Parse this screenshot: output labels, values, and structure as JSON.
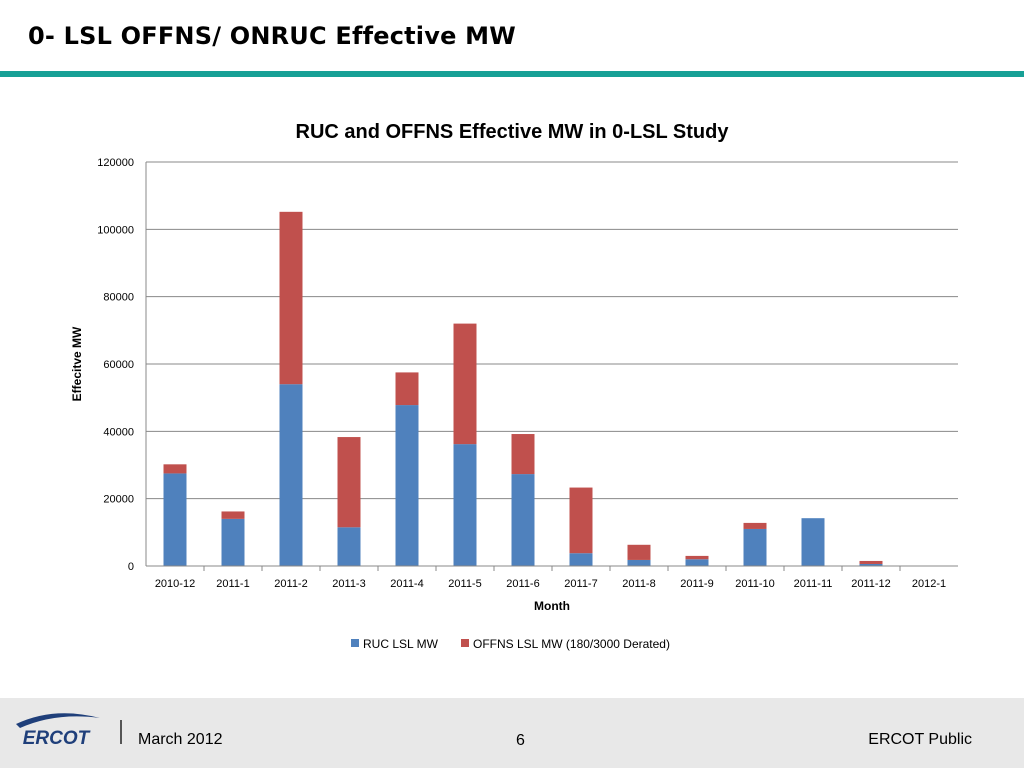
{
  "slide": {
    "title": "0- LSL OFFNS/ ONRUC Effective MW"
  },
  "footer": {
    "date": "March 2012",
    "page_number": "6",
    "classification": "ERCOT Public",
    "logo_text": "ERCOT"
  },
  "colors": {
    "accent_rule": "#17a096",
    "ruc": "#4f81bd",
    "offns": "#c0504d"
  },
  "chart_data": {
    "type": "bar",
    "stacked": true,
    "title": "RUC and OFFNS Effective MW in 0-LSL Study",
    "xlabel": "Month",
    "ylabel": "Effecitve MW",
    "ylim": [
      0,
      120000
    ],
    "yticks": [
      "0",
      "20000",
      "40000",
      "60000",
      "80000",
      "100000",
      "120000"
    ],
    "grid": true,
    "legend": "bottom",
    "categories": [
      "2010-12",
      "2011-1",
      "2011-2",
      "2011-3",
      "2011-4",
      "2011-5",
      "2011-6",
      "2011-7",
      "2011-8",
      "2011-9",
      "2011-10",
      "2011-11",
      "2011-12",
      "2012-1"
    ],
    "series": [
      {
        "name": "RUC LSL MW",
        "color": "#4f81bd",
        "values": [
          27500,
          14000,
          54000,
          11500,
          47800,
          36200,
          27300,
          3800,
          1800,
          2000,
          11000,
          14200,
          600,
          0
        ]
      },
      {
        "name": "OFFNS LSL MW (180/3000 Derated)",
        "color": "#c0504d",
        "values": [
          2700,
          2200,
          51200,
          26800,
          9700,
          35800,
          11900,
          19500,
          4500,
          1000,
          1800,
          0,
          900,
          0
        ]
      }
    ]
  }
}
